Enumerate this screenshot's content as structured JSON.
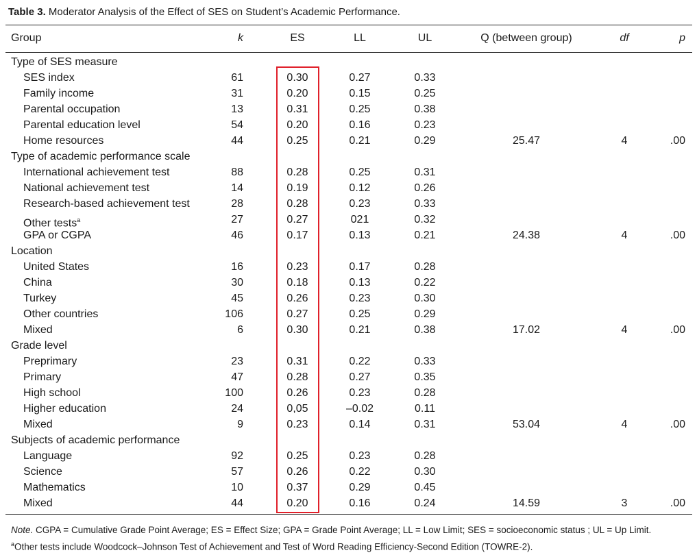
{
  "title": {
    "label": "Table 3.",
    "text": "Moderator Analysis of the Effect of SES on Student’s Academic Performance."
  },
  "table": {
    "header": {
      "group": "Group",
      "k": "k",
      "es": "ES",
      "ll": "LL",
      "ul": "UL",
      "q": "Q (between group)",
      "df": "df",
      "p": "p"
    },
    "groups": [
      {
        "name": "Type of SES measure",
        "rows": [
          {
            "group": "SES index",
            "k": "61",
            "es": "0.30",
            "ll": "0.27",
            "ul": "0.33"
          },
          {
            "group": "Family income",
            "k": "31",
            "es": "0.20",
            "ll": "0.15",
            "ul": "0.25"
          },
          {
            "group": "Parental occupation",
            "k": "13",
            "es": "0.31",
            "ll": "0.25",
            "ul": "0.38"
          },
          {
            "group": "Parental education level",
            "k": "54",
            "es": "0.20",
            "ll": "0.16",
            "ul": "0.23"
          },
          {
            "group": "Home resources",
            "k": "44",
            "es": "0.25",
            "ll": "0.21",
            "ul": "0.29",
            "q": "25.47",
            "df": "4",
            "p": ".00"
          }
        ]
      },
      {
        "name": "Type of academic performance scale",
        "rows": [
          {
            "group": "International achievement test",
            "k": "88",
            "es": "0.28",
            "ll": "0.25",
            "ul": "0.31"
          },
          {
            "group": "National achievement test",
            "k": "14",
            "es": "0.19",
            "ll": "0.12",
            "ul": "0.26"
          },
          {
            "group": "Research-based achievement test",
            "k": "28",
            "es": "0.28",
            "ll": "0.23",
            "ul": "0.33"
          },
          {
            "group": "Other tests",
            "footnote": "a",
            "k": "27",
            "es": "0.27",
            "ll": "021",
            "ul": "0.32"
          },
          {
            "group": "GPA or CGPA",
            "k": "46",
            "es": "0.17",
            "ll": "0.13",
            "ul": "0.21",
            "q": "24.38",
            "df": "4",
            "p": ".00"
          }
        ]
      },
      {
        "name": "Location",
        "rows": [
          {
            "group": "United States",
            "k": "16",
            "es": "0.23",
            "ll": "0.17",
            "ul": "0.28"
          },
          {
            "group": "China",
            "k": "30",
            "es": "0.18",
            "ll": "0.13",
            "ul": "0.22"
          },
          {
            "group": "Turkey",
            "k": "45",
            "es": "0.26",
            "ll": "0.23",
            "ul": "0.30"
          },
          {
            "group": "Other countries",
            "k": "106",
            "es": "0.27",
            "ll": "0.25",
            "ul": "0.29"
          },
          {
            "group": "Mixed",
            "k": "6",
            "es": "0.30",
            "ll": "0.21",
            "ul": "0.38",
            "q": "17.02",
            "df": "4",
            "p": ".00"
          }
        ]
      },
      {
        "name": "Grade level",
        "rows": [
          {
            "group": "Preprimary",
            "k": "23",
            "es": "0.31",
            "ll": "0.22",
            "ul": "0.33"
          },
          {
            "group": "Primary",
            "k": "47",
            "es": "0.28",
            "ll": "0.27",
            "ul": "0.35"
          },
          {
            "group": "High school",
            "k": "100",
            "es": "0.26",
            "ll": "0.23",
            "ul": "0.28"
          },
          {
            "group": "Higher education",
            "k": "24",
            "es": "0,05",
            "ll": "–0.02",
            "ul": "0.11"
          },
          {
            "group": "Mixed",
            "k": "9",
            "es": "0.23",
            "ll": "0.14",
            "ul": "0.31",
            "q": "53.04",
            "df": "4",
            "p": ".00"
          }
        ]
      },
      {
        "name": "Subjects of academic performance",
        "rows": [
          {
            "group": "Language",
            "k": "92",
            "es": "0.25",
            "ll": "0.23",
            "ul": "0.28"
          },
          {
            "group": "Science",
            "k": "57",
            "es": "0.26",
            "ll": "0.22",
            "ul": "0.30"
          },
          {
            "group": "Mathematics",
            "k": "10",
            "es": "0.37",
            "ll": "0.29",
            "ul": "0.45"
          },
          {
            "group": "Mixed",
            "k": "44",
            "es": "0.20",
            "ll": "0.16",
            "ul": "0.24",
            "q": "14.59",
            "df": "3",
            "p": ".00"
          }
        ]
      }
    ]
  },
  "note": {
    "label": "Note.",
    "text": "CGPA = Cumulative Grade Point Average; ES = Effect Size; GPA = Grade Point Average; LL = Low Limit; SES = socioeconomic status ; UL = Up Limit.",
    "footnote_mark": "a",
    "footnote": "Other tests include Woodcock–Johnson Test of Achievement and Test of Word Reading Efficiency-Second Edition (TOWRE-2)."
  }
}
